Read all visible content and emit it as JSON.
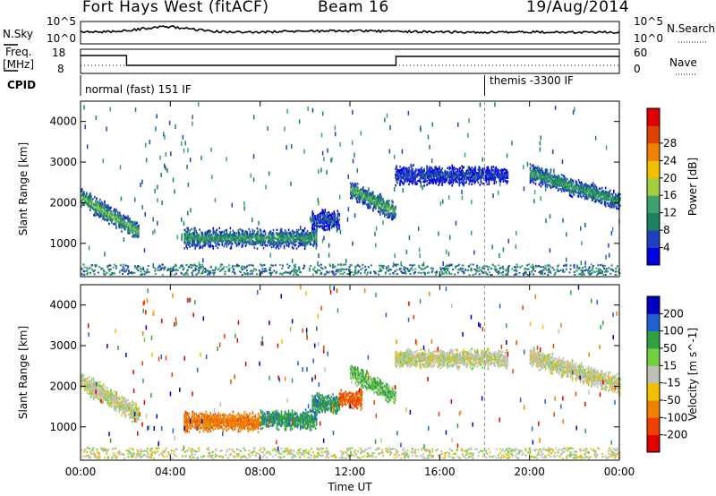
{
  "header": {
    "title": "Fort Hays West (fitACF)",
    "beam": "Beam 16",
    "date": "19/Aug/2014"
  },
  "top_panels": {
    "nsky_label": "N.Sky",
    "nsky_ticks": [
      "10^5",
      "10^0"
    ],
    "nsearch_label": "N.Search",
    "nsearch_ticks": [
      "10^5",
      "10^0"
    ],
    "freq_label": "Freq.",
    "freq_unit": "[MHz]",
    "freq_ticks": [
      "18",
      "8"
    ],
    "nave_label": "Nave",
    "nave_ticks": [
      "60",
      "0"
    ],
    "cpid_label": "CPID",
    "cpid_segments": [
      "normal (fast) 151 IF",
      "themis -3300 IF"
    ]
  },
  "colors": {
    "power_scale": [
      "#0000e0",
      "#2040c0",
      "#1a8060",
      "#40a070",
      "#a0d040",
      "#f0c000",
      "#f08000",
      "#e04000",
      "#e00000"
    ],
    "velocity_scale": [
      "#0000c0",
      "#2060d0",
      "#30a040",
      "#70d040",
      "#c0c0b8",
      "#f0c000",
      "#f08000",
      "#f04000",
      "#e00000"
    ]
  },
  "chart_data": [
    {
      "type": "heatmap",
      "title": "",
      "xlabel": "",
      "ylabel": "Slant Range [km]",
      "x_ticks": [
        "00:00",
        "04:00",
        "08:00",
        "12:00",
        "16:00",
        "20:00",
        "00:00"
      ],
      "y_ticks": [
        1000,
        2000,
        3000,
        4000
      ],
      "xlim_hours": [
        0,
        24
      ],
      "ylim_km": [
        180,
        4500
      ],
      "colorbar": {
        "label": "Power [dB]",
        "ticks": [
          4,
          8,
          12,
          16,
          20,
          24,
          28
        ],
        "range": [
          0,
          32
        ]
      },
      "dominant_echoes": [
        {
          "t_start_h": 0.0,
          "t_end_h": 2.6,
          "range_start_km": 2100,
          "range_end_km": 1250,
          "power_db": 15
        },
        {
          "t_start_h": 4.6,
          "t_end_h": 10.5,
          "range_km": 1100,
          "power_db": 12
        },
        {
          "t_start_h": 10.3,
          "t_end_h": 11.5,
          "range_km": 1550,
          "power_db": 6
        },
        {
          "t_start_h": 12.0,
          "t_end_h": 14.0,
          "range_start_km": 2300,
          "range_end_km": 1750,
          "power_db": 14
        },
        {
          "t_start_h": 14.0,
          "t_end_h": 19.0,
          "range_km": 2650,
          "power_db": 6
        },
        {
          "t_start_h": 20.0,
          "t_end_h": 24.0,
          "range_start_km": 2700,
          "range_end_km": 2000,
          "power_db": 12
        }
      ]
    },
    {
      "type": "heatmap",
      "title": "",
      "xlabel": "Time UT",
      "ylabel": "Slant Range [km]",
      "x_ticks": [
        "00:00",
        "04:00",
        "08:00",
        "12:00",
        "16:00",
        "20:00",
        "00:00"
      ],
      "y_ticks": [
        1000,
        2000,
        3000,
        4000
      ],
      "xlim_hours": [
        0,
        24
      ],
      "ylim_km": [
        180,
        4500
      ],
      "colorbar": {
        "label": "Velocity [m s^-1]",
        "ticks": [
          200,
          100,
          50,
          15,
          -15,
          -50,
          -100,
          -200
        ]
      },
      "dominant_echoes": [
        {
          "t_start_h": 0.0,
          "t_end_h": 2.6,
          "range_start_km": 2100,
          "range_end_km": 1250,
          "velocity_ms": 0
        },
        {
          "t_start_h": 4.6,
          "t_end_h": 8.0,
          "range_km": 1100,
          "velocity_ms": -60
        },
        {
          "t_start_h": 8.0,
          "t_end_h": 10.5,
          "range_km": 1150,
          "velocity_ms": 60
        },
        {
          "t_start_h": 10.3,
          "t_end_h": 11.5,
          "range_km": 1550,
          "velocity_ms": 60
        },
        {
          "t_start_h": 11.5,
          "t_end_h": 12.5,
          "range_km": 1650,
          "velocity_ms": -80
        },
        {
          "t_start_h": 12.0,
          "t_end_h": 14.0,
          "range_start_km": 2300,
          "range_end_km": 1750,
          "velocity_ms": 30
        },
        {
          "t_start_h": 14.0,
          "t_end_h": 19.0,
          "range_km": 2650,
          "velocity_ms": 0
        },
        {
          "t_start_h": 20.0,
          "t_end_h": 24.0,
          "range_start_km": 2700,
          "range_end_km": 2000,
          "velocity_ms": 0
        }
      ]
    }
  ]
}
